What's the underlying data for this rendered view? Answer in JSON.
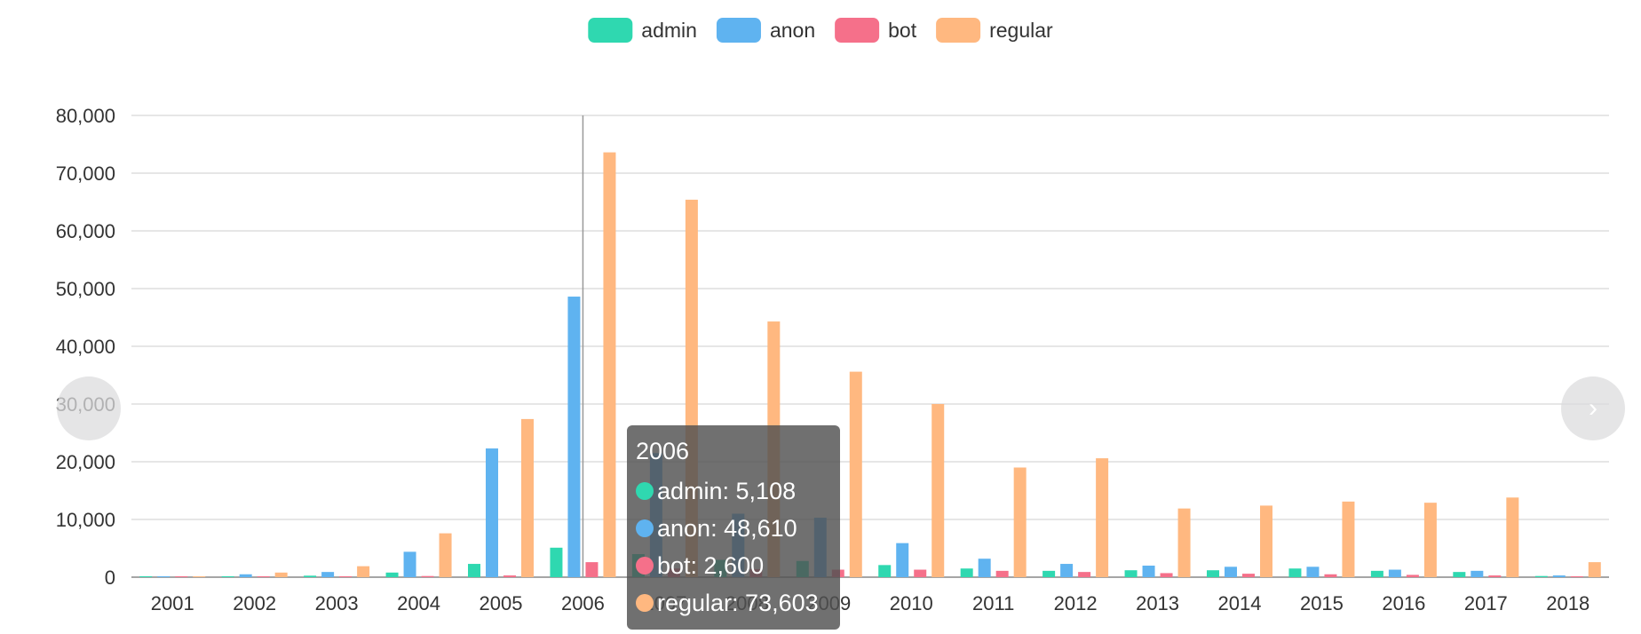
{
  "chart_data": {
    "type": "bar",
    "categories": [
      "2001",
      "2002",
      "2003",
      "2004",
      "2005",
      "2006",
      "2007",
      "2008",
      "2009",
      "2010",
      "2011",
      "2012",
      "2013",
      "2014",
      "2015",
      "2016",
      "2017",
      "2018"
    ],
    "series": [
      {
        "name": "admin",
        "color": "#2fd8b0",
        "values": [
          30,
          60,
          260,
          800,
          2300,
          5108,
          4000,
          3000,
          2800,
          2100,
          1500,
          1100,
          1200,
          1200,
          1500,
          1100,
          900,
          200
        ]
      },
      {
        "name": "anon",
        "color": "#5fb3f0",
        "values": [
          80,
          500,
          900,
          4400,
          22300,
          48610,
          21500,
          11000,
          10300,
          5900,
          3200,
          2300,
          2000,
          1800,
          1800,
          1300,
          1100,
          300
        ]
      },
      {
        "name": "bot",
        "color": "#f5708a",
        "values": [
          20,
          50,
          60,
          200,
          300,
          2600,
          1500,
          1400,
          1300,
          1300,
          1100,
          900,
          700,
          600,
          500,
          400,
          300,
          100
        ]
      },
      {
        "name": "regular",
        "color": "#ffb880",
        "values": [
          100,
          800,
          1900,
          7600,
          27400,
          73603,
          65400,
          44300,
          35600,
          30000,
          19000,
          20600,
          11900,
          12400,
          13100,
          12900,
          13800,
          2600
        ]
      }
    ],
    "yticks": [
      "0",
      "10,000",
      "20,000",
      "30,000",
      "40,000",
      "50,000",
      "60,000",
      "70,000",
      "80,000"
    ],
    "ylim": [
      0,
      80000
    ],
    "legend_position": "top-center",
    "grid": true
  },
  "tooltip": {
    "title": "2006",
    "rows": [
      {
        "label": "admin: 5,108",
        "color": "#2fd8b0"
      },
      {
        "label": "anon: 48,610",
        "color": "#5fb3f0"
      },
      {
        "label": "bot: 2,600",
        "color": "#f5708a"
      },
      {
        "label": "regular: 73,603",
        "color": "#ffb880"
      }
    ]
  },
  "navigation": {
    "next_icon": "chevron-right-icon"
  }
}
